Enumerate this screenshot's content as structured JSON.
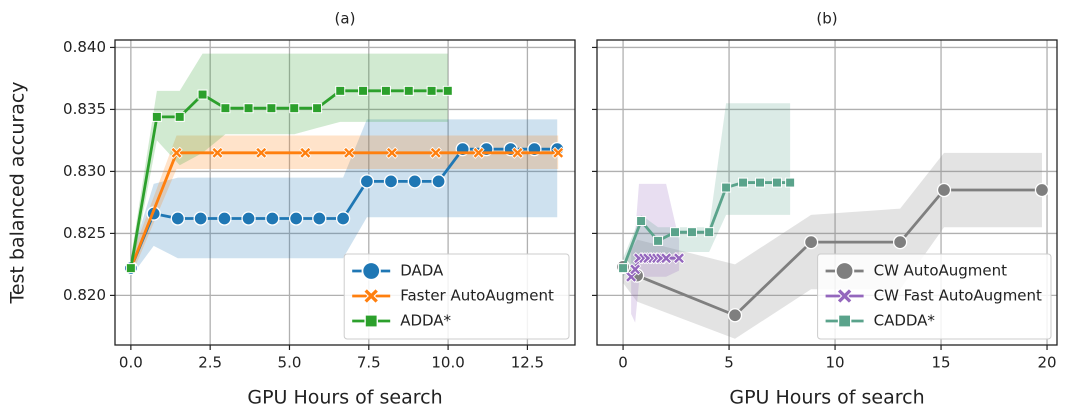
{
  "chart_data": [
    {
      "type": "line",
      "title": "(a)",
      "xlabel": "GPU Hours of search",
      "ylabel": "Test balanced accuracy",
      "xlim": [
        -0.5,
        14.0
      ],
      "ylim": [
        0.816,
        0.8406
      ],
      "xticks": [
        {
          "value": 0,
          "label": "0.0"
        },
        2.5,
        {
          "value": 5,
          "label": "5.0"
        },
        7.5,
        {
          "value": 10,
          "label": "10.0"
        },
        12.5
      ],
      "yticks": [
        {
          "value": 0.82,
          "label": "0.820"
        },
        0.825,
        {
          "value": 0.83,
          "label": "0.830"
        },
        0.835,
        {
          "value": 0.84,
          "label": "0.840"
        }
      ],
      "grid": true,
      "legend": "lower right",
      "series": [
        {
          "name": "DADA",
          "color": "#1f77b4",
          "marker": "circle",
          "x": [
            0,
            0.72,
            1.48,
            2.2,
            2.95,
            3.71,
            4.46,
            5.21,
            5.94,
            6.69,
            7.44,
            8.2,
            8.95,
            9.7,
            10.46,
            11.21,
            11.97,
            12.72,
            13.44
          ],
          "values": [
            0.8222,
            0.8266,
            0.8262,
            0.8262,
            0.8262,
            0.8262,
            0.8262,
            0.8262,
            0.8262,
            0.8262,
            0.8292,
            0.8292,
            0.8292,
            0.8292,
            0.8318,
            0.8318,
            0.8318,
            0.8318,
            0.8318
          ],
          "ci_lower": [
            0.8215,
            0.824,
            0.823,
            0.823,
            0.823,
            0.823,
            0.823,
            0.823,
            0.823,
            0.823,
            0.8263,
            0.8263,
            0.8263,
            0.8263,
            0.8263,
            0.8263,
            0.8263,
            0.8263,
            0.8263
          ],
          "ci_upper": [
            0.823,
            0.829,
            0.8295,
            0.8295,
            0.8295,
            0.8295,
            0.8295,
            0.8295,
            0.8295,
            0.8295,
            0.8342,
            0.8342,
            0.8342,
            0.8342,
            0.8342,
            0.8342,
            0.8342,
            0.8342,
            0.8342
          ]
        },
        {
          "name": "Faster AutoAugment",
          "color": "#ff7f0e",
          "marker": "x",
          "x": [
            0,
            1.44,
            2.73,
            4.11,
            5.5,
            6.88,
            8.23,
            9.61,
            10.96,
            12.19,
            13.47
          ],
          "values": [
            0.8222,
            0.8315,
            0.8315,
            0.8315,
            0.8315,
            0.8315,
            0.8315,
            0.8315,
            0.8315,
            0.8315,
            0.8315
          ],
          "ci_lower": [
            0.8215,
            0.8302,
            0.8302,
            0.8302,
            0.8302,
            0.8302,
            0.8302,
            0.8302,
            0.8302,
            0.8302,
            0.8302
          ],
          "ci_upper": [
            0.823,
            0.8329,
            0.8329,
            0.8329,
            0.8329,
            0.8329,
            0.8329,
            0.8329,
            0.8329,
            0.8329,
            0.8329
          ]
        },
        {
          "name": "ADDA*",
          "color": "#2ca02c",
          "marker": "square",
          "x": [
            0,
            0.82,
            1.54,
            2.26,
            2.98,
            3.71,
            4.43,
            5.15,
            5.87,
            6.6,
            7.32,
            8.04,
            8.76,
            9.48,
            9.99
          ],
          "values": [
            0.8222,
            0.8344,
            0.8344,
            0.8362,
            0.8351,
            0.8351,
            0.8351,
            0.8351,
            0.8351,
            0.8365,
            0.8365,
            0.8365,
            0.8365,
            0.8365,
            0.8365
          ],
          "ci_lower": [
            0.8215,
            0.8325,
            0.8305,
            0.8315,
            0.833,
            0.833,
            0.833,
            0.833,
            0.8335,
            0.834,
            0.834,
            0.834,
            0.834,
            0.834,
            0.834
          ],
          "ci_upper": [
            0.823,
            0.8365,
            0.8365,
            0.8395,
            0.8395,
            0.8395,
            0.8395,
            0.8395,
            0.8395,
            0.8395,
            0.8395,
            0.8395,
            0.8395,
            0.8395,
            0.8395
          ]
        }
      ]
    },
    {
      "type": "line",
      "title": "(b)",
      "xlabel": "GPU Hours of search",
      "xlim": [
        -1.23,
        20.47
      ],
      "ylim": [
        0.816,
        0.8406
      ],
      "xticks": [
        0,
        5,
        10,
        15,
        20
      ],
      "yticks": [
        0.82,
        0.825,
        0.83,
        0.835,
        0.84
      ],
      "grid": true,
      "legend": "lower right",
      "series": [
        {
          "name": "CW AutoAugment",
          "color": "#7f7f7f",
          "marker": "circle",
          "x": [
            0,
            0.66,
            5.28,
            8.87,
            13.07,
            15.14,
            19.76
          ],
          "values": [
            0.8223,
            0.8216,
            0.8184,
            0.8243,
            0.8243,
            0.8285,
            0.8285
          ],
          "ci_lower": [
            0.821,
            0.8195,
            0.8165,
            0.8205,
            0.8205,
            0.8255,
            0.8255
          ],
          "ci_upper": [
            0.8225,
            0.8245,
            0.8225,
            0.8265,
            0.827,
            0.8315,
            0.8315
          ]
        },
        {
          "name": "CW Fast AutoAugment",
          "color": "#9467bd",
          "marker": "x",
          "x": [
            0.38,
            0.57,
            0.75,
            0.99,
            1.18,
            1.42,
            1.6,
            1.79,
            2.03,
            2.64
          ],
          "values": [
            0.8215,
            0.8221,
            0.823,
            0.823,
            0.823,
            0.823,
            0.823,
            0.823,
            0.823,
            0.823
          ],
          "ci_lower": [
            0.8185,
            0.8178,
            0.821,
            0.8215,
            0.8215,
            0.8215,
            0.8215,
            0.8215,
            0.8215,
            0.822
          ],
          "ci_upper": [
            0.8235,
            0.825,
            0.829,
            0.829,
            0.829,
            0.829,
            0.829,
            0.829,
            0.829,
            0.8245
          ]
        },
        {
          "name": "CADDA*",
          "color": "#5aa38b",
          "marker": "square",
          "x": [
            0,
            0.85,
            1.65,
            2.45,
            3.25,
            4.06,
            4.86,
            5.66,
            6.46,
            7.26,
            7.88
          ],
          "values": [
            0.8222,
            0.826,
            0.8244,
            0.8251,
            0.8251,
            0.8251,
            0.8287,
            0.8291,
            0.8291,
            0.8291,
            0.8291
          ],
          "ci_lower": [
            0.8215,
            0.823,
            0.8225,
            0.8235,
            0.8235,
            0.8235,
            0.8265,
            0.8265,
            0.8265,
            0.8265,
            0.8265
          ],
          "ci_upper": [
            0.823,
            0.8265,
            0.8255,
            0.8255,
            0.8255,
            0.8255,
            0.8355,
            0.8355,
            0.8355,
            0.8355,
            0.8355
          ]
        }
      ]
    }
  ]
}
